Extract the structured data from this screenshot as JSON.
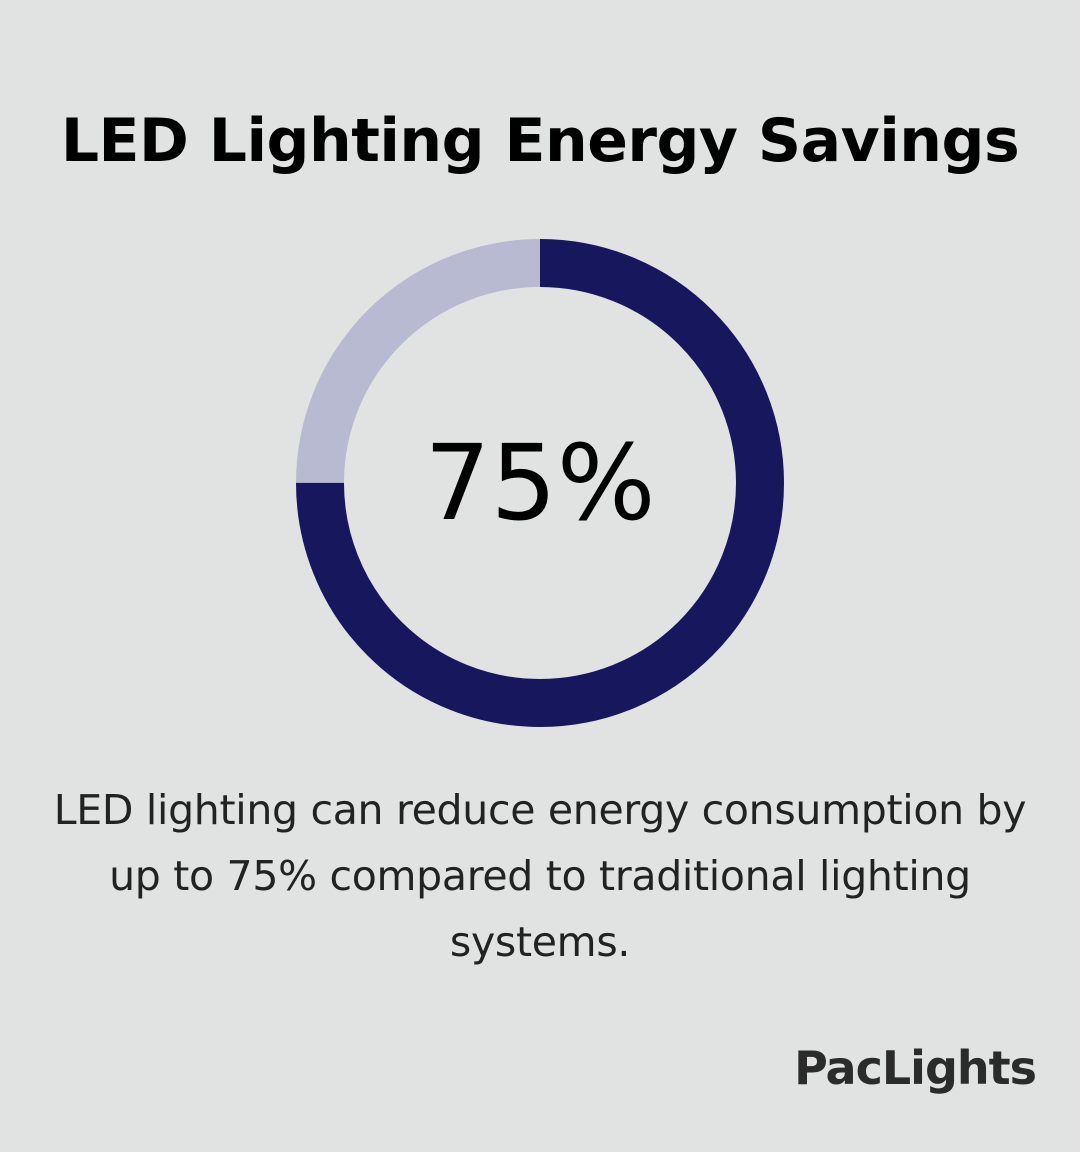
{
  "title": "LED Lighting Energy Savings",
  "chart_data": {
    "type": "pie",
    "variant": "donut",
    "center_label": "75%",
    "segments": [
      {
        "value": 75,
        "color": "#17175e"
      },
      {
        "value": 25,
        "color": "#b8bad1"
      }
    ]
  },
  "caption": "LED lighting can reduce energy consumption by up to 75% compared to traditional lighting systems.",
  "brand": "PacLights",
  "colors": {
    "background": "#e1e3e3",
    "primary": "#17175e",
    "secondary": "#b8bad1"
  }
}
